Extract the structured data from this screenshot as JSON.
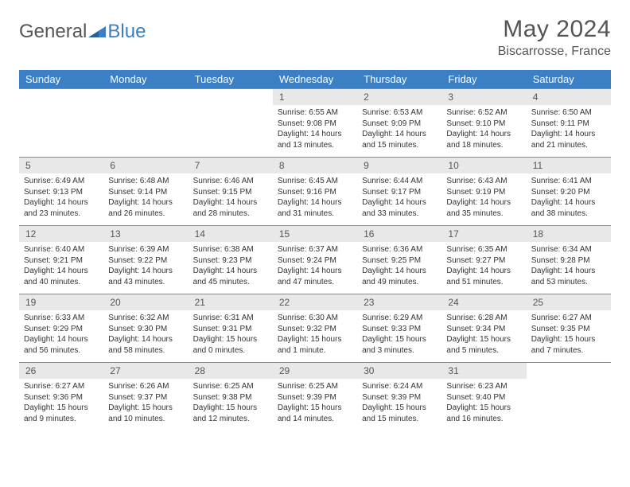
{
  "logo": {
    "text_general": "General",
    "text_blue": "Blue"
  },
  "title": "May 2024",
  "location": "Biscarrosse, France",
  "colors": {
    "accent": "#3b7fc4",
    "day_bg": "#e8e8e8",
    "text": "#555555"
  },
  "weekdays": [
    "Sunday",
    "Monday",
    "Tuesday",
    "Wednesday",
    "Thursday",
    "Friday",
    "Saturday"
  ],
  "layout": {
    "first_weekday_index": 3,
    "days_in_month": 31
  },
  "days": {
    "1": {
      "sunrise": "6:55 AM",
      "sunset": "9:08 PM",
      "daylight": "14 hours and 13 minutes."
    },
    "2": {
      "sunrise": "6:53 AM",
      "sunset": "9:09 PM",
      "daylight": "14 hours and 15 minutes."
    },
    "3": {
      "sunrise": "6:52 AM",
      "sunset": "9:10 PM",
      "daylight": "14 hours and 18 minutes."
    },
    "4": {
      "sunrise": "6:50 AM",
      "sunset": "9:11 PM",
      "daylight": "14 hours and 21 minutes."
    },
    "5": {
      "sunrise": "6:49 AM",
      "sunset": "9:13 PM",
      "daylight": "14 hours and 23 minutes."
    },
    "6": {
      "sunrise": "6:48 AM",
      "sunset": "9:14 PM",
      "daylight": "14 hours and 26 minutes."
    },
    "7": {
      "sunrise": "6:46 AM",
      "sunset": "9:15 PM",
      "daylight": "14 hours and 28 minutes."
    },
    "8": {
      "sunrise": "6:45 AM",
      "sunset": "9:16 PM",
      "daylight": "14 hours and 31 minutes."
    },
    "9": {
      "sunrise": "6:44 AM",
      "sunset": "9:17 PM",
      "daylight": "14 hours and 33 minutes."
    },
    "10": {
      "sunrise": "6:43 AM",
      "sunset": "9:19 PM",
      "daylight": "14 hours and 35 minutes."
    },
    "11": {
      "sunrise": "6:41 AM",
      "sunset": "9:20 PM",
      "daylight": "14 hours and 38 minutes."
    },
    "12": {
      "sunrise": "6:40 AM",
      "sunset": "9:21 PM",
      "daylight": "14 hours and 40 minutes."
    },
    "13": {
      "sunrise": "6:39 AM",
      "sunset": "9:22 PM",
      "daylight": "14 hours and 43 minutes."
    },
    "14": {
      "sunrise": "6:38 AM",
      "sunset": "9:23 PM",
      "daylight": "14 hours and 45 minutes."
    },
    "15": {
      "sunrise": "6:37 AM",
      "sunset": "9:24 PM",
      "daylight": "14 hours and 47 minutes."
    },
    "16": {
      "sunrise": "6:36 AM",
      "sunset": "9:25 PM",
      "daylight": "14 hours and 49 minutes."
    },
    "17": {
      "sunrise": "6:35 AM",
      "sunset": "9:27 PM",
      "daylight": "14 hours and 51 minutes."
    },
    "18": {
      "sunrise": "6:34 AM",
      "sunset": "9:28 PM",
      "daylight": "14 hours and 53 minutes."
    },
    "19": {
      "sunrise": "6:33 AM",
      "sunset": "9:29 PM",
      "daylight": "14 hours and 56 minutes."
    },
    "20": {
      "sunrise": "6:32 AM",
      "sunset": "9:30 PM",
      "daylight": "14 hours and 58 minutes."
    },
    "21": {
      "sunrise": "6:31 AM",
      "sunset": "9:31 PM",
      "daylight": "15 hours and 0 minutes."
    },
    "22": {
      "sunrise": "6:30 AM",
      "sunset": "9:32 PM",
      "daylight": "15 hours and 1 minute."
    },
    "23": {
      "sunrise": "6:29 AM",
      "sunset": "9:33 PM",
      "daylight": "15 hours and 3 minutes."
    },
    "24": {
      "sunrise": "6:28 AM",
      "sunset": "9:34 PM",
      "daylight": "15 hours and 5 minutes."
    },
    "25": {
      "sunrise": "6:27 AM",
      "sunset": "9:35 PM",
      "daylight": "15 hours and 7 minutes."
    },
    "26": {
      "sunrise": "6:27 AM",
      "sunset": "9:36 PM",
      "daylight": "15 hours and 9 minutes."
    },
    "27": {
      "sunrise": "6:26 AM",
      "sunset": "9:37 PM",
      "daylight": "15 hours and 10 minutes."
    },
    "28": {
      "sunrise": "6:25 AM",
      "sunset": "9:38 PM",
      "daylight": "15 hours and 12 minutes."
    },
    "29": {
      "sunrise": "6:25 AM",
      "sunset": "9:39 PM",
      "daylight": "15 hours and 14 minutes."
    },
    "30": {
      "sunrise": "6:24 AM",
      "sunset": "9:39 PM",
      "daylight": "15 hours and 15 minutes."
    },
    "31": {
      "sunrise": "6:23 AM",
      "sunset": "9:40 PM",
      "daylight": "15 hours and 16 minutes."
    }
  },
  "labels": {
    "sunrise": "Sunrise:",
    "sunset": "Sunset:",
    "daylight": "Daylight:"
  }
}
